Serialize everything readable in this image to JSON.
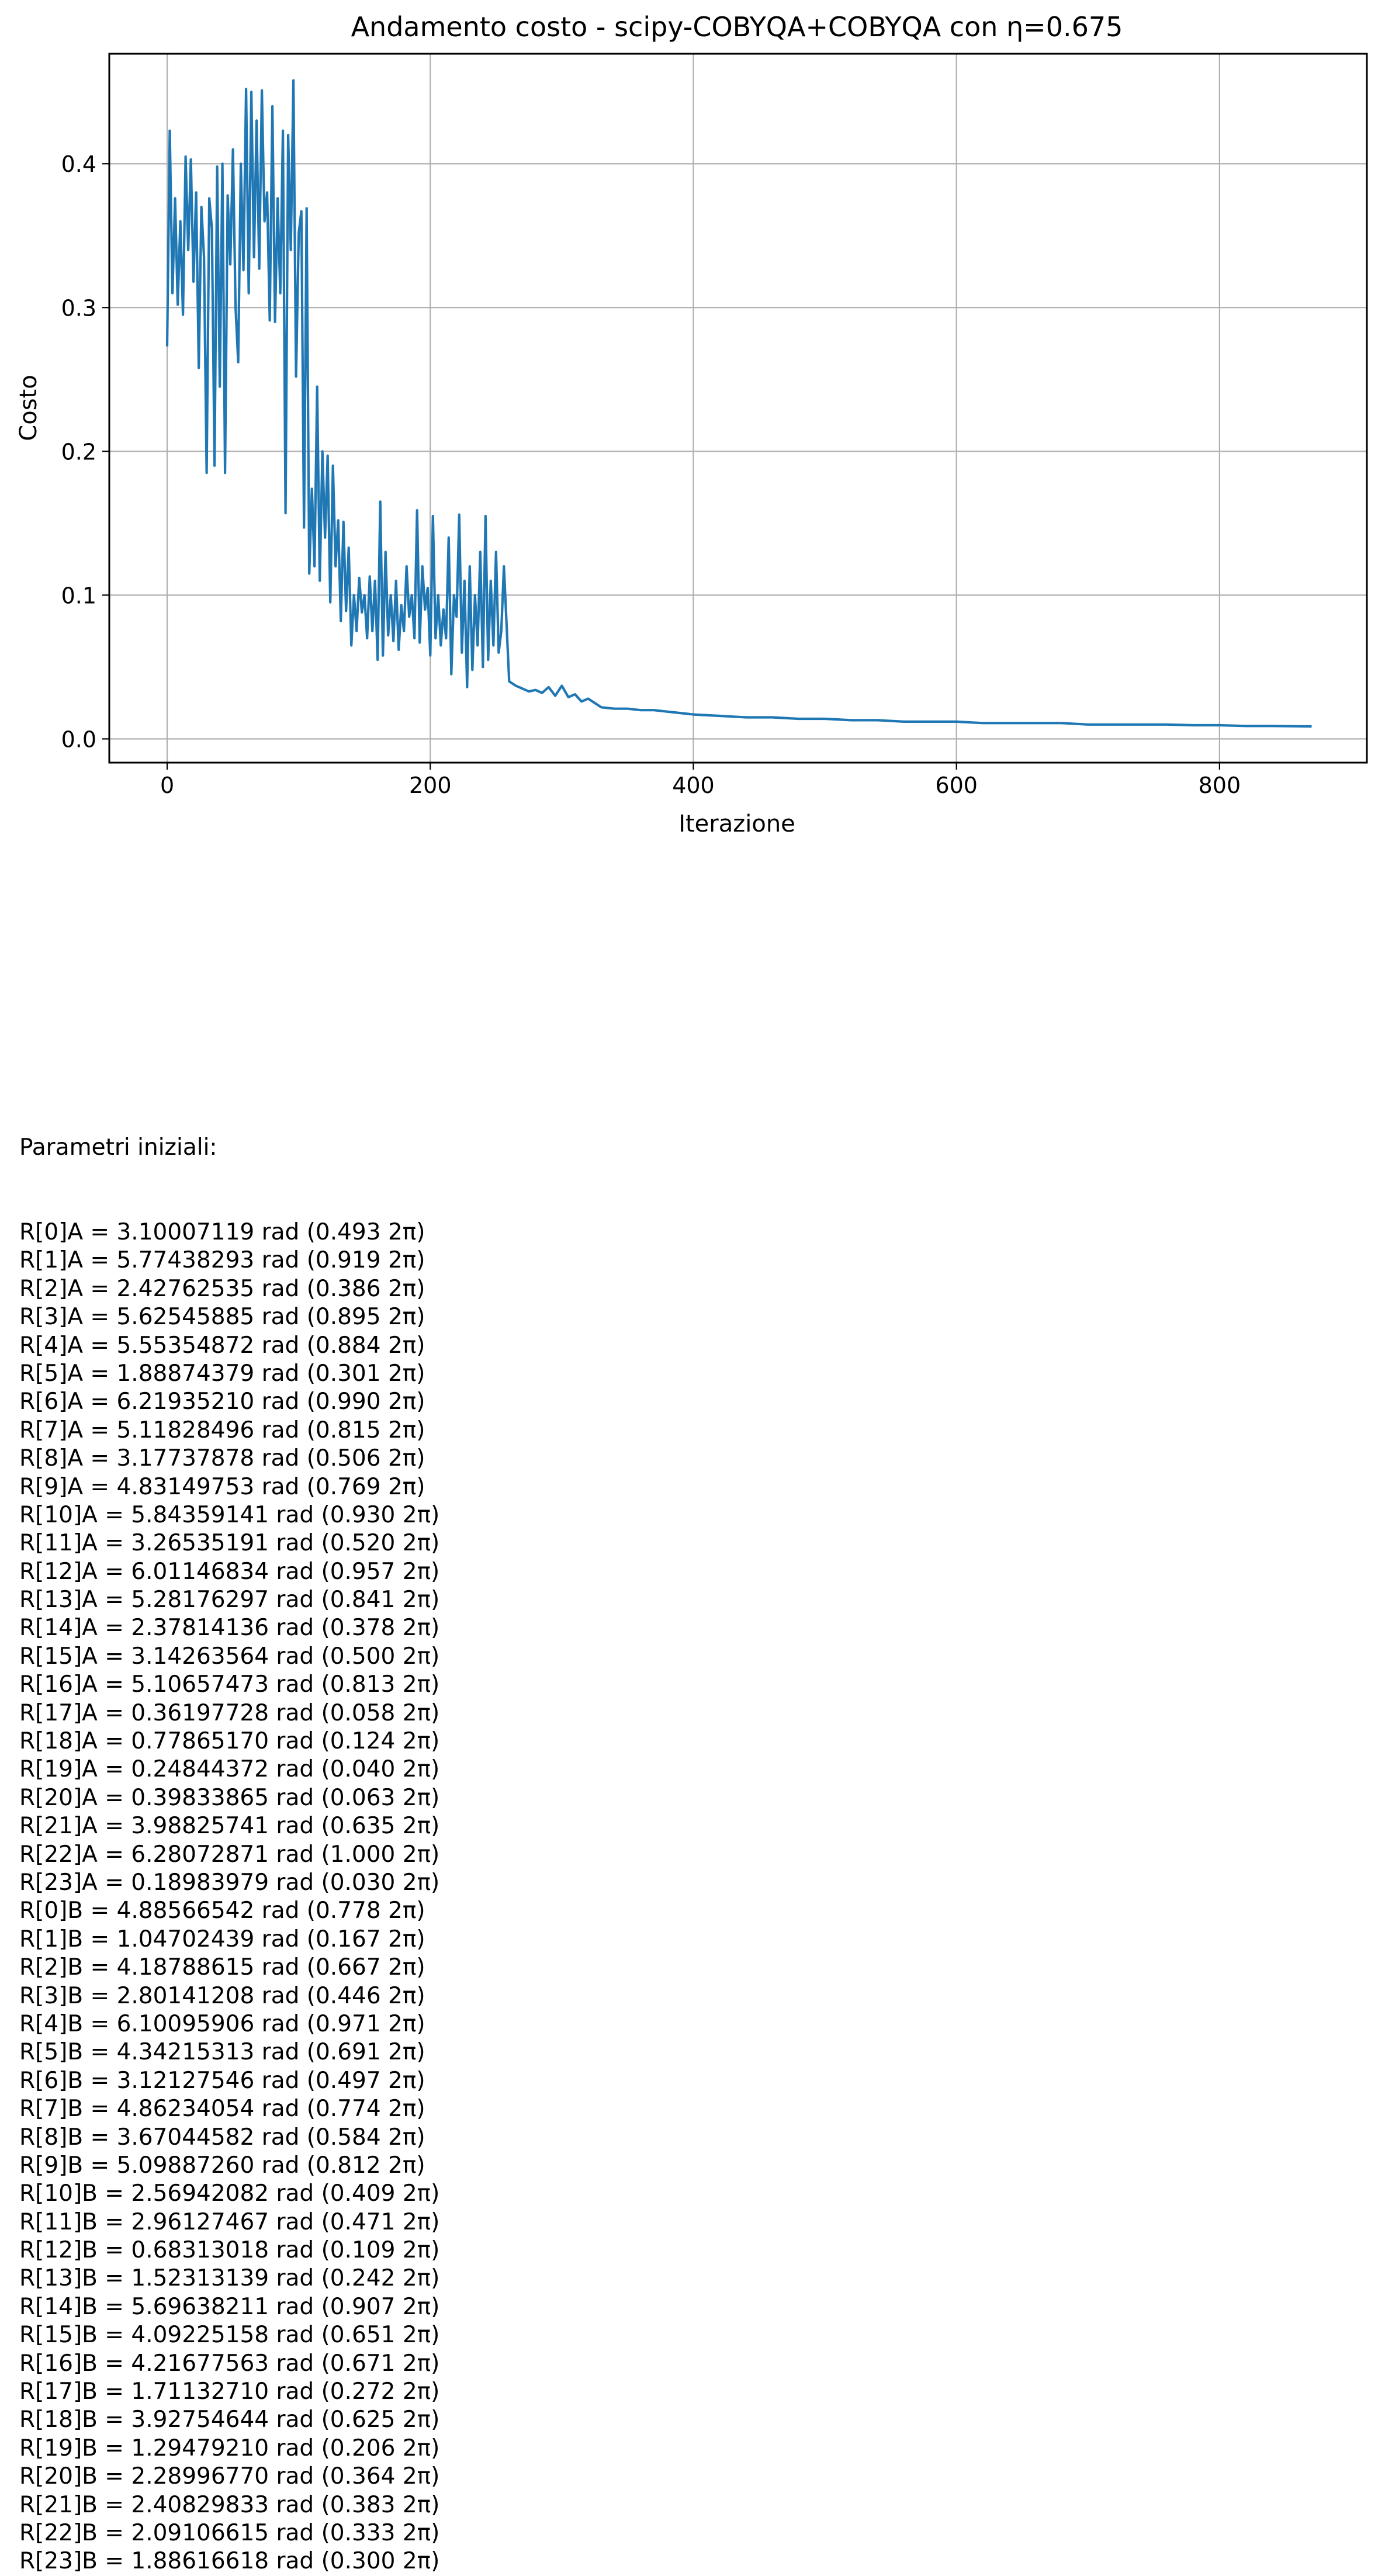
{
  "chart_data": {
    "type": "line",
    "title": "Andamento costo - scipy-COBYQA+COBYQA con η=0.675",
    "xlabel": "Iterazione",
    "ylabel": "Costo",
    "xlim": [
      -44,
      912
    ],
    "ylim": [
      -0.0165,
      0.4765
    ],
    "xticks": [
      0,
      200,
      400,
      600,
      800
    ],
    "yticks": [
      0.0,
      0.1,
      0.2,
      0.3,
      0.4
    ],
    "xtick_labels": [
      "0",
      "200",
      "400",
      "600",
      "800"
    ],
    "ytick_labels": [
      "0.0",
      "0.1",
      "0.2",
      "0.3",
      "0.4"
    ],
    "grid": true,
    "line_color": "#1f77b4",
    "series": [
      {
        "x": [
          0,
          2,
          4,
          6,
          8,
          10,
          12,
          14,
          16,
          18,
          20,
          22,
          24,
          26,
          28,
          30,
          32,
          34,
          36,
          38,
          40,
          42,
          44,
          46,
          48,
          50,
          52,
          54,
          56,
          58,
          60,
          62,
          64,
          66,
          68,
          70,
          72,
          74,
          76,
          78,
          80,
          82,
          84,
          86,
          88,
          90,
          92,
          94,
          96,
          98,
          100,
          102,
          104,
          106,
          108,
          110,
          112,
          114,
          116,
          118,
          120,
          122,
          124,
          126,
          128,
          130,
          132,
          134,
          136,
          138,
          140,
          142,
          144,
          146,
          148,
          150,
          152,
          154,
          156,
          158,
          160,
          162,
          164,
          166,
          168,
          170,
          172,
          174,
          176,
          178,
          180,
          182,
          184,
          186,
          188,
          190,
          192,
          194,
          196,
          198,
          200,
          202,
          204,
          206,
          208,
          210,
          212,
          214,
          216,
          218,
          220,
          222,
          224,
          226,
          228,
          230,
          232,
          234,
          236,
          238,
          240,
          242,
          244,
          246,
          248,
          250,
          252,
          254,
          256,
          260,
          265,
          270,
          275,
          280,
          285,
          290,
          295,
          300,
          305,
          310,
          315,
          320,
          330,
          340,
          350,
          360,
          370,
          380,
          390,
          400,
          420,
          440,
          460,
          480,
          500,
          520,
          540,
          560,
          580,
          600,
          620,
          640,
          660,
          680,
          700,
          720,
          740,
          760,
          780,
          800,
          820,
          840,
          860,
          870
        ],
        "y": [
          0.273,
          0.423,
          0.31,
          0.376,
          0.302,
          0.36,
          0.295,
          0.405,
          0.34,
          0.403,
          0.318,
          0.38,
          0.258,
          0.37,
          0.335,
          0.185,
          0.376,
          0.355,
          0.19,
          0.398,
          0.245,
          0.4,
          0.185,
          0.378,
          0.33,
          0.41,
          0.3,
          0.262,
          0.4,
          0.326,
          0.452,
          0.31,
          0.45,
          0.335,
          0.43,
          0.327,
          0.451,
          0.36,
          0.38,
          0.291,
          0.44,
          0.29,
          0.376,
          0.31,
          0.423,
          0.157,
          0.42,
          0.34,
          0.458,
          0.252,
          0.352,
          0.367,
          0.147,
          0.369,
          0.115,
          0.174,
          0.12,
          0.245,
          0.11,
          0.2,
          0.14,
          0.197,
          0.095,
          0.19,
          0.12,
          0.152,
          0.082,
          0.151,
          0.089,
          0.133,
          0.065,
          0.1,
          0.075,
          0.112,
          0.088,
          0.1,
          0.07,
          0.113,
          0.075,
          0.11,
          0.055,
          0.165,
          0.058,
          0.13,
          0.072,
          0.1,
          0.068,
          0.11,
          0.062,
          0.093,
          0.075,
          0.12,
          0.085,
          0.1,
          0.07,
          0.159,
          0.067,
          0.12,
          0.09,
          0.105,
          0.058,
          0.155,
          0.07,
          0.1,
          0.065,
          0.09,
          0.07,
          0.14,
          0.045,
          0.1,
          0.085,
          0.156,
          0.06,
          0.11,
          0.036,
          0.12,
          0.048,
          0.1,
          0.065,
          0.13,
          0.05,
          0.155,
          0.055,
          0.11,
          0.065,
          0.13,
          0.06,
          0.075,
          0.12,
          0.04,
          0.037,
          0.035,
          0.033,
          0.034,
          0.032,
          0.036,
          0.03,
          0.037,
          0.029,
          0.031,
          0.026,
          0.028,
          0.022,
          0.021,
          0.021,
          0.02,
          0.02,
          0.019,
          0.018,
          0.017,
          0.016,
          0.015,
          0.015,
          0.014,
          0.014,
          0.013,
          0.013,
          0.012,
          0.012,
          0.012,
          0.011,
          0.011,
          0.011,
          0.011,
          0.01,
          0.01,
          0.01,
          0.01,
          0.0095,
          0.0095,
          0.009,
          0.009,
          0.0088,
          0.0087
        ]
      }
    ]
  },
  "params": {
    "heading": "Parametri iniziali:",
    "lines": [
      "R[0]A = 3.10007119 rad (0.493 2π)",
      "R[1]A = 5.77438293 rad (0.919 2π)",
      "R[2]A = 2.42762535 rad (0.386 2π)",
      "R[3]A = 5.62545885 rad (0.895 2π)",
      "R[4]A = 5.55354872 rad (0.884 2π)",
      "R[5]A = 1.88874379 rad (0.301 2π)",
      "R[6]A = 6.21935210 rad (0.990 2π)",
      "R[7]A = 5.11828496 rad (0.815 2π)",
      "R[8]A = 3.17737878 rad (0.506 2π)",
      "R[9]A = 4.83149753 rad (0.769 2π)",
      "R[10]A = 5.84359141 rad (0.930 2π)",
      "R[11]A = 3.26535191 rad (0.520 2π)",
      "R[12]A = 6.01146834 rad (0.957 2π)",
      "R[13]A = 5.28176297 rad (0.841 2π)",
      "R[14]A = 2.37814136 rad (0.378 2π)",
      "R[15]A = 3.14263564 rad (0.500 2π)",
      "R[16]A = 5.10657473 rad (0.813 2π)",
      "R[17]A = 0.36197728 rad (0.058 2π)",
      "R[18]A = 0.77865170 rad (0.124 2π)",
      "R[19]A = 0.24844372 rad (0.040 2π)",
      "R[20]A = 0.39833865 rad (0.063 2π)",
      "R[21]A = 3.98825741 rad (0.635 2π)",
      "R[22]A = 6.28072871 rad (1.000 2π)",
      "R[23]A = 0.18983979 rad (0.030 2π)",
      "R[0]B = 4.88566542 rad (0.778 2π)",
      "R[1]B = 1.04702439 rad (0.167 2π)",
      "R[2]B = 4.18788615 rad (0.667 2π)",
      "R[3]B = 2.80141208 rad (0.446 2π)",
      "R[4]B = 6.10095906 rad (0.971 2π)",
      "R[5]B = 4.34215313 rad (0.691 2π)",
      "R[6]B = 3.12127546 rad (0.497 2π)",
      "R[7]B = 4.86234054 rad (0.774 2π)",
      "R[8]B = 3.67044582 rad (0.584 2π)",
      "R[9]B = 5.09887260 rad (0.812 2π)",
      "R[10]B = 2.56942082 rad (0.409 2π)",
      "R[11]B = 2.96127467 rad (0.471 2π)",
      "R[12]B = 0.68313018 rad (0.109 2π)",
      "R[13]B = 1.52313139 rad (0.242 2π)",
      "R[14]B = 5.69638211 rad (0.907 2π)",
      "R[15]B = 4.09225158 rad (0.651 2π)",
      "R[16]B = 4.21677563 rad (0.671 2π)",
      "R[17]B = 1.71132710 rad (0.272 2π)",
      "R[18]B = 3.92754644 rad (0.625 2π)",
      "R[19]B = 1.29479210 rad (0.206 2π)",
      "R[20]B = 2.28996770 rad (0.364 2π)",
      "R[21]B = 2.40829833 rad (0.383 2π)",
      "R[22]B = 2.09106615 rad (0.333 2π)",
      "R[23]B = 1.88616618 rad (0.300 2π)"
    ]
  }
}
